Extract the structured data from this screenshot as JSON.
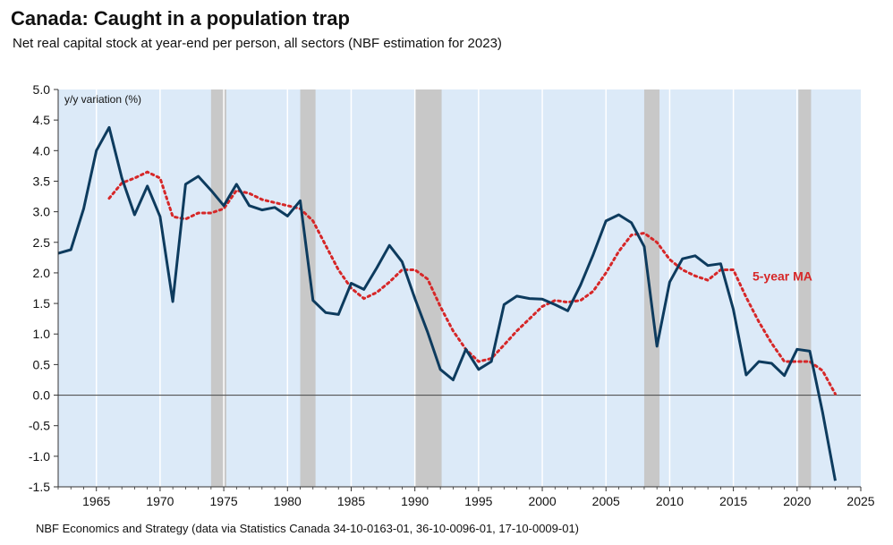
{
  "title": "Canada: Caught in a population trap",
  "subtitle": "Net real capital stock at year-end per person, all sectors (NBF estimation for 2023)",
  "source": "NBF Economics and Strategy (data via Statistics Canada 34-10-0163-01, 36-10-0096-01, 17-10-0009-01)",
  "colors": {
    "plot_bg": "#dceaf8",
    "recession": "#c8c8c8",
    "grid": "#ffffff",
    "main_line": "#0d3b5e",
    "ma_line": "#d62728",
    "zero_line": "#555555"
  },
  "chart_data": {
    "type": "line",
    "title": "Canada: Caught in a population trap",
    "ylabel": "y/y variation (%)",
    "xlim": [
      1962,
      2025
    ],
    "ylim": [
      -1.5,
      5.0
    ],
    "x_ticks": [
      1965,
      1970,
      1975,
      1980,
      1985,
      1990,
      1995,
      2000,
      2005,
      2010,
      2015,
      2020,
      2025
    ],
    "y_ticks": [
      5.0,
      4.5,
      4.0,
      3.5,
      3.0,
      2.5,
      2.0,
      1.5,
      1.0,
      0.5,
      0.0,
      -0.5,
      -1.0,
      -1.5
    ],
    "y_tick_labels": [
      "5.0",
      "4.5",
      "4.0",
      "3.5",
      "3.0",
      "2.5",
      "2.0",
      "1.5",
      "1.0",
      "0.5",
      "0.0",
      "-0.5",
      "-1.0",
      "-1.5"
    ],
    "grid": "vertical",
    "recession_shading": [
      [
        1974,
        1975.2
      ],
      [
        1981,
        1982.2
      ],
      [
        1990,
        1992.1
      ],
      [
        2008,
        2009.2
      ],
      [
        2020.1,
        2021.1
      ]
    ],
    "series": [
      {
        "style": "solid",
        "x": [
          1962,
          1963,
          1964,
          1965,
          1966,
          1967,
          1968,
          1969,
          1970,
          1971,
          1972,
          1973,
          1974,
          1975,
          1976,
          1977,
          1978,
          1979,
          1980,
          1981,
          1982,
          1983,
          1984,
          1985,
          1986,
          1987,
          1988,
          1989,
          1990,
          1991,
          1992,
          1993,
          1994,
          1995,
          1996,
          1997,
          1998,
          1999,
          2000,
          2001,
          2002,
          2003,
          2004,
          2005,
          2006,
          2007,
          2008,
          2009,
          2010,
          2011,
          2012,
          2013,
          2014,
          2015,
          2016,
          2017,
          2018,
          2019,
          2020,
          2021,
          2022,
          2023
        ],
        "y": [
          2.32,
          2.38,
          3.05,
          4.0,
          4.38,
          3.55,
          2.95,
          3.42,
          2.92,
          1.53,
          3.45,
          3.58,
          3.35,
          3.1,
          3.45,
          3.1,
          3.03,
          3.07,
          2.93,
          3.18,
          1.55,
          1.35,
          1.32,
          1.83,
          1.73,
          2.08,
          2.45,
          2.18,
          1.58,
          1.03,
          0.42,
          0.25,
          0.75,
          0.42,
          0.55,
          1.48,
          1.62,
          1.58,
          1.57,
          1.48,
          1.38,
          1.8,
          2.3,
          2.85,
          2.95,
          2.82,
          2.43,
          0.8,
          1.85,
          2.23,
          2.28,
          2.12,
          2.15,
          1.4,
          0.33,
          0.55,
          0.52,
          0.32,
          0.75,
          0.72,
          -0.28,
          -1.4
        ]
      },
      {
        "name": "5-year MA",
        "style": "dotted",
        "x": [
          1966,
          1967,
          1968,
          1969,
          1970,
          1971,
          1972,
          1973,
          1974,
          1975,
          1976,
          1977,
          1978,
          1979,
          1980,
          1981,
          1982,
          1983,
          1984,
          1985,
          1986,
          1987,
          1988,
          1989,
          1990,
          1991,
          1992,
          1993,
          1994,
          1995,
          1996,
          1997,
          1998,
          1999,
          2000,
          2001,
          2002,
          2003,
          2004,
          2005,
          2006,
          2007,
          2008,
          2009,
          2010,
          2011,
          2012,
          2013,
          2014,
          2015,
          2016,
          2017,
          2018,
          2019,
          2020,
          2021,
          2022,
          2023
        ],
        "y": [
          3.22,
          3.47,
          3.55,
          3.65,
          3.55,
          2.92,
          2.88,
          2.98,
          2.98,
          3.05,
          3.35,
          3.3,
          3.2,
          3.15,
          3.1,
          3.05,
          2.85,
          2.45,
          2.05,
          1.75,
          1.58,
          1.68,
          1.85,
          2.05,
          2.05,
          1.9,
          1.45,
          1.05,
          0.75,
          0.55,
          0.6,
          0.82,
          1.05,
          1.25,
          1.45,
          1.55,
          1.52,
          1.55,
          1.7,
          2.0,
          2.35,
          2.62,
          2.65,
          2.5,
          2.22,
          2.05,
          1.95,
          1.88,
          2.05,
          2.05,
          1.6,
          1.2,
          0.85,
          0.55,
          0.55,
          0.55,
          0.4,
          0.02
        ]
      }
    ],
    "annotations": [
      {
        "text": "5-year MA",
        "x": 2016.5,
        "y": 1.95
      }
    ]
  }
}
